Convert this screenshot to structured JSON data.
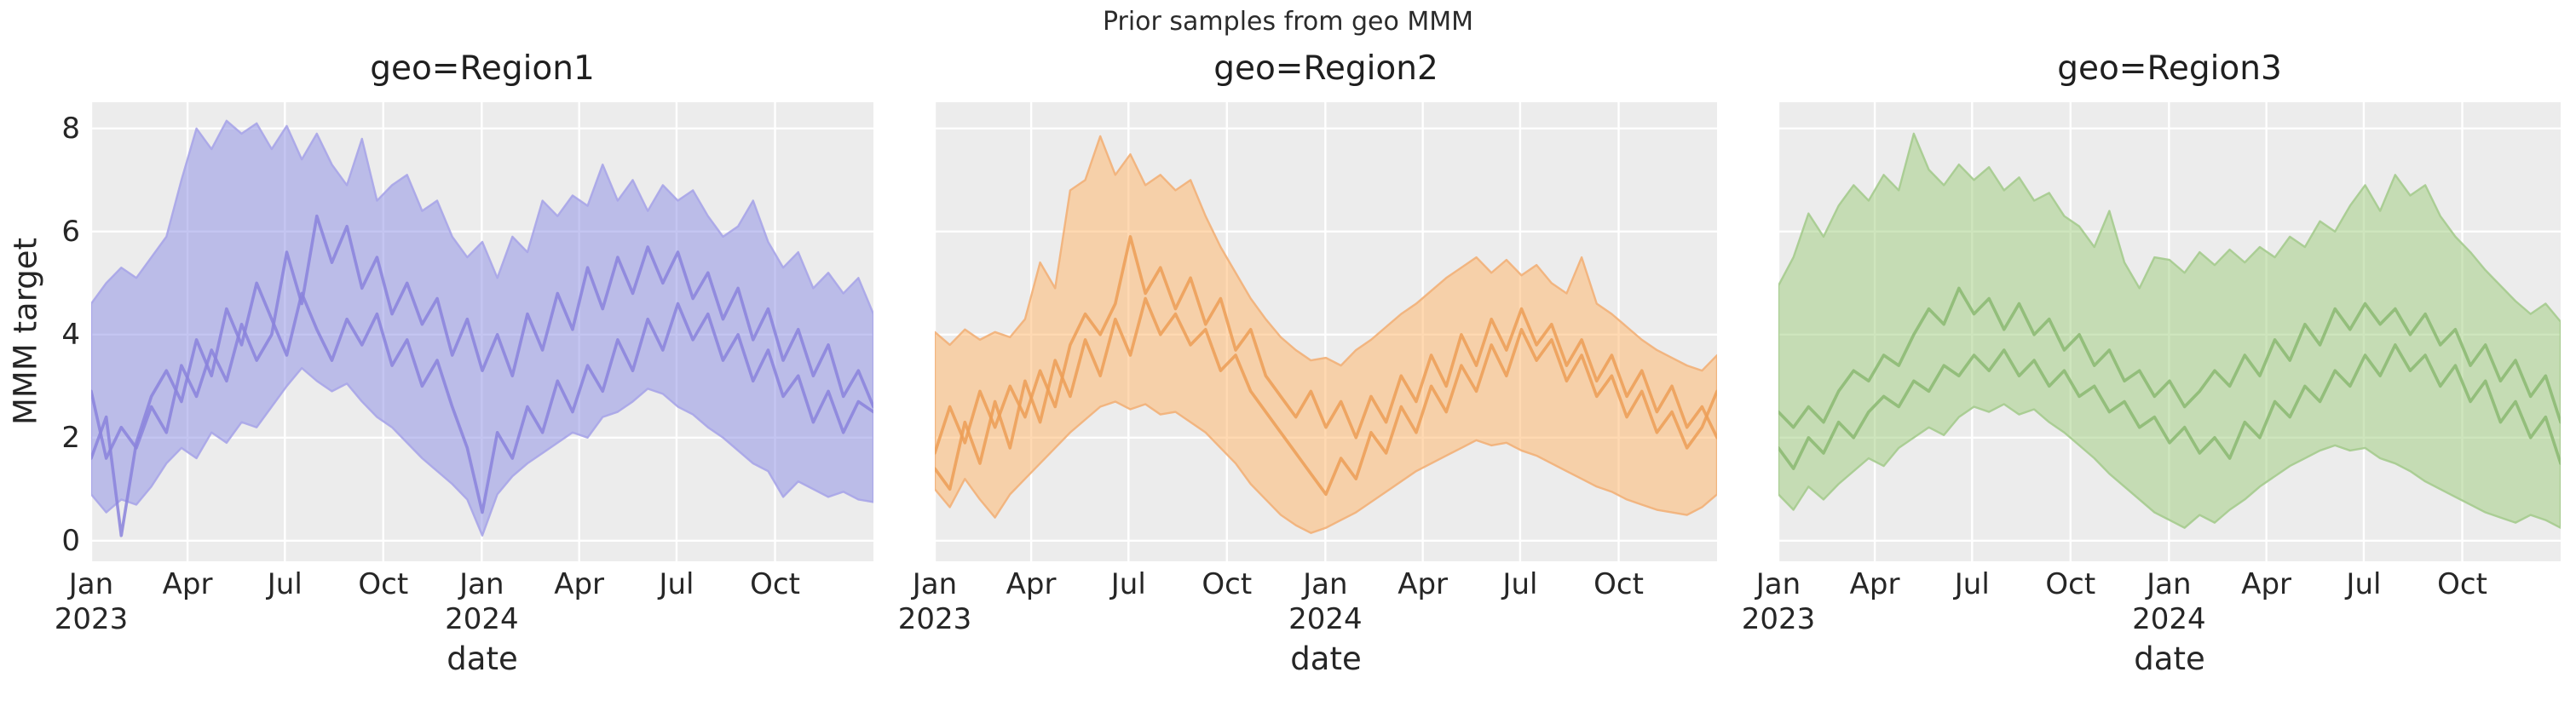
{
  "figure": {
    "suptitle": "Prior samples from geo MMM",
    "xlabel": "date",
    "ylabel": "MMM target",
    "background_color": "#ffffff",
    "panel_background_color": "#ececec",
    "grid_color": "#ffffff",
    "text_color": "#262626"
  },
  "chart_data": {
    "type": "line",
    "title": "Prior samples from geo MMM",
    "xlabel": "date",
    "ylabel": "MMM target",
    "grid": "on",
    "legend": "none",
    "ylim": [
      -0.4,
      8.51
    ],
    "y_ticks": [
      {
        "value": 0,
        "label": "0"
      },
      {
        "value": 2,
        "label": "2"
      },
      {
        "value": 4,
        "label": "4"
      },
      {
        "value": 6,
        "label": "6"
      },
      {
        "value": 8,
        "label": "8"
      }
    ],
    "x_ticks": [
      {
        "pos": 0.0,
        "label": "Jan\n2023"
      },
      {
        "pos": 0.1232,
        "label": "Apr"
      },
      {
        "pos": 0.2476,
        "label": "Jul"
      },
      {
        "pos": 0.3734,
        "label": "Oct"
      },
      {
        "pos": 0.4993,
        "label": "Jan\n2024"
      },
      {
        "pos": 0.6238,
        "label": "Apr"
      },
      {
        "pos": 0.7483,
        "label": "Jul"
      },
      {
        "pos": 0.8742,
        "label": "Oct"
      }
    ],
    "x_range_description": "weekly dates from Jan 2023 to Dec 2024, sampled every 2 weeks (53 points)",
    "panels": [
      {
        "title": "geo=Region1",
        "colors": {
          "band_fill": "#8a8ce4",
          "band_fill_alpha": 0.5,
          "band_edge": "#a9a5e8",
          "line": "#8a82dc"
        },
        "band_upper": [
          4.6,
          5.0,
          5.3,
          5.1,
          5.5,
          5.9,
          7.0,
          8.0,
          7.6,
          8.15,
          7.9,
          8.1,
          7.6,
          8.05,
          7.4,
          7.9,
          7.3,
          6.9,
          7.8,
          6.6,
          6.9,
          7.1,
          6.4,
          6.6,
          5.9,
          5.5,
          5.8,
          5.1,
          5.9,
          5.6,
          6.6,
          6.3,
          6.7,
          6.5,
          7.3,
          6.6,
          7.0,
          6.4,
          6.9,
          6.6,
          6.8,
          6.3,
          5.9,
          6.1,
          6.6,
          5.8,
          5.3,
          5.6,
          4.9,
          5.2,
          4.8,
          5.1,
          4.4
        ],
        "band_lower": [
          0.9,
          0.55,
          0.8,
          0.7,
          1.05,
          1.5,
          1.8,
          1.6,
          2.1,
          1.9,
          2.3,
          2.2,
          2.6,
          3.0,
          3.35,
          3.1,
          2.9,
          3.05,
          2.7,
          2.4,
          2.2,
          1.9,
          1.6,
          1.35,
          1.1,
          0.8,
          0.1,
          0.9,
          1.25,
          1.5,
          1.7,
          1.9,
          2.1,
          2.0,
          2.4,
          2.5,
          2.7,
          2.95,
          2.85,
          2.6,
          2.45,
          2.2,
          2.0,
          1.75,
          1.5,
          1.35,
          0.85,
          1.15,
          1.0,
          0.85,
          0.95,
          0.8,
          0.75
        ],
        "samples": [
          [
            2.9,
            1.6,
            2.2,
            1.8,
            2.6,
            2.1,
            3.4,
            2.8,
            3.7,
            3.1,
            4.2,
            3.5,
            4.0,
            5.6,
            4.6,
            6.3,
            5.4,
            6.1,
            4.9,
            5.5,
            4.4,
            5.0,
            4.2,
            4.7,
            3.6,
            4.3,
            3.3,
            4.0,
            3.2,
            4.4,
            3.7,
            4.8,
            4.1,
            5.3,
            4.5,
            5.5,
            4.8,
            5.7,
            5.0,
            5.6,
            4.7,
            5.2,
            4.3,
            4.9,
            3.9,
            4.5,
            3.5,
            4.1,
            3.2,
            3.8,
            2.8,
            3.3,
            2.6
          ],
          [
            1.6,
            2.4,
            0.1,
            1.9,
            2.8,
            3.3,
            2.7,
            3.9,
            3.2,
            4.5,
            3.8,
            5.0,
            4.3,
            3.6,
            4.8,
            4.1,
            3.5,
            4.3,
            3.8,
            4.4,
            3.4,
            3.9,
            3.0,
            3.5,
            2.6,
            1.8,
            0.55,
            2.1,
            1.6,
            2.6,
            2.1,
            3.1,
            2.5,
            3.4,
            2.9,
            3.9,
            3.3,
            4.3,
            3.7,
            4.6,
            3.9,
            4.4,
            3.5,
            4.0,
            3.1,
            3.7,
            2.8,
            3.2,
            2.3,
            2.9,
            2.1,
            2.7,
            2.5
          ]
        ]
      },
      {
        "title": "geo=Region2",
        "colors": {
          "band_fill": "#ffb366",
          "band_fill_alpha": 0.5,
          "band_edge": "#f2b078",
          "line": "#ec9e56"
        },
        "band_upper": [
          4.05,
          3.8,
          4.1,
          3.9,
          4.05,
          3.95,
          4.3,
          5.4,
          4.9,
          6.8,
          7.0,
          7.85,
          7.1,
          7.5,
          6.9,
          7.1,
          6.8,
          7.0,
          6.3,
          5.7,
          5.2,
          4.7,
          4.3,
          3.95,
          3.7,
          3.5,
          3.55,
          3.4,
          3.7,
          3.9,
          4.15,
          4.4,
          4.6,
          4.85,
          5.1,
          5.3,
          5.5,
          5.2,
          5.45,
          5.15,
          5.35,
          5.0,
          4.8,
          5.5,
          4.6,
          4.4,
          4.15,
          3.9,
          3.7,
          3.55,
          3.4,
          3.3,
          3.6
        ],
        "band_lower": [
          1.0,
          0.65,
          1.2,
          0.8,
          0.45,
          0.9,
          1.2,
          1.5,
          1.8,
          2.1,
          2.35,
          2.6,
          2.7,
          2.55,
          2.65,
          2.45,
          2.5,
          2.3,
          2.1,
          1.8,
          1.5,
          1.1,
          0.8,
          0.5,
          0.3,
          0.15,
          0.25,
          0.4,
          0.55,
          0.75,
          0.95,
          1.15,
          1.35,
          1.5,
          1.65,
          1.8,
          1.95,
          1.85,
          1.9,
          1.75,
          1.65,
          1.5,
          1.35,
          1.2,
          1.05,
          0.95,
          0.8,
          0.7,
          0.6,
          0.55,
          0.5,
          0.65,
          0.9
        ],
        "samples": [
          [
            1.7,
            2.6,
            1.9,
            2.9,
            2.2,
            3.0,
            2.4,
            3.3,
            2.6,
            3.8,
            4.4,
            4.0,
            4.6,
            5.9,
            4.8,
            5.3,
            4.5,
            5.1,
            4.2,
            4.7,
            3.7,
            4.1,
            3.2,
            2.8,
            2.4,
            2.9,
            2.2,
            2.7,
            2.0,
            2.8,
            2.3,
            3.2,
            2.7,
            3.6,
            3.0,
            4.0,
            3.4,
            4.3,
            3.7,
            4.5,
            3.8,
            4.2,
            3.4,
            3.9,
            3.1,
            3.6,
            2.8,
            3.3,
            2.5,
            3.0,
            2.2,
            2.6,
            2.0
          ],
          [
            1.4,
            1.0,
            2.3,
            1.5,
            2.7,
            1.8,
            3.1,
            2.3,
            3.5,
            2.8,
            3.9,
            3.2,
            4.3,
            3.6,
            4.7,
            4.0,
            4.4,
            3.8,
            4.1,
            3.3,
            3.6,
            2.9,
            2.5,
            2.1,
            1.7,
            1.3,
            0.9,
            1.6,
            1.2,
            2.1,
            1.7,
            2.6,
            2.1,
            3.0,
            2.5,
            3.4,
            2.9,
            3.8,
            3.2,
            4.1,
            3.5,
            3.9,
            3.1,
            3.6,
            2.8,
            3.2,
            2.4,
            2.9,
            2.1,
            2.5,
            1.8,
            2.2,
            2.9
          ]
        ]
      },
      {
        "title": "geo=Region3",
        "colors": {
          "band_fill": "#9ecc7c",
          "band_fill_alpha": 0.5,
          "band_edge": "#a5cb8e",
          "line": "#89b871"
        },
        "band_upper": [
          4.95,
          5.5,
          6.35,
          5.9,
          6.5,
          6.9,
          6.6,
          7.1,
          6.8,
          7.9,
          7.2,
          6.9,
          7.3,
          7.0,
          7.25,
          6.8,
          7.05,
          6.6,
          6.75,
          6.3,
          6.1,
          5.7,
          6.4,
          5.4,
          4.9,
          5.5,
          5.45,
          5.2,
          5.6,
          5.35,
          5.65,
          5.4,
          5.7,
          5.5,
          5.9,
          5.7,
          6.2,
          6.0,
          6.5,
          6.9,
          6.4,
          7.1,
          6.7,
          6.9,
          6.3,
          5.9,
          5.6,
          5.25,
          4.95,
          4.65,
          4.4,
          4.6,
          4.25
        ],
        "band_lower": [
          0.9,
          0.6,
          1.05,
          0.8,
          1.1,
          1.35,
          1.6,
          1.45,
          1.8,
          2.0,
          2.2,
          2.05,
          2.4,
          2.6,
          2.5,
          2.65,
          2.45,
          2.55,
          2.3,
          2.1,
          1.85,
          1.6,
          1.3,
          1.05,
          0.8,
          0.55,
          0.4,
          0.25,
          0.5,
          0.35,
          0.6,
          0.8,
          1.05,
          1.25,
          1.45,
          1.6,
          1.75,
          1.85,
          1.75,
          1.8,
          1.6,
          1.5,
          1.35,
          1.15,
          1.0,
          0.85,
          0.7,
          0.55,
          0.45,
          0.35,
          0.5,
          0.4,
          0.25
        ],
        "samples": [
          [
            2.5,
            2.2,
            2.6,
            2.3,
            2.9,
            3.3,
            3.1,
            3.6,
            3.4,
            4.0,
            4.5,
            4.2,
            4.9,
            4.4,
            4.7,
            4.1,
            4.6,
            4.0,
            4.3,
            3.7,
            4.0,
            3.4,
            3.7,
            3.1,
            3.3,
            2.8,
            3.1,
            2.6,
            2.9,
            3.3,
            3.0,
            3.6,
            3.2,
            3.9,
            3.5,
            4.2,
            3.8,
            4.5,
            4.1,
            4.6,
            4.2,
            4.5,
            4.0,
            4.4,
            3.8,
            4.1,
            3.4,
            3.8,
            3.1,
            3.5,
            2.8,
            3.2,
            2.3
          ],
          [
            1.8,
            1.4,
            2.0,
            1.7,
            2.3,
            2.0,
            2.5,
            2.8,
            2.6,
            3.1,
            2.9,
            3.4,
            3.2,
            3.6,
            3.3,
            3.7,
            3.2,
            3.5,
            3.0,
            3.3,
            2.8,
            3.0,
            2.5,
            2.7,
            2.2,
            2.4,
            1.9,
            2.2,
            1.7,
            2.0,
            1.6,
            2.3,
            2.0,
            2.7,
            2.4,
            3.0,
            2.7,
            3.3,
            3.0,
            3.6,
            3.2,
            3.8,
            3.3,
            3.6,
            3.0,
            3.4,
            2.7,
            3.1,
            2.3,
            2.7,
            2.0,
            2.4,
            1.5
          ]
        ]
      }
    ]
  }
}
